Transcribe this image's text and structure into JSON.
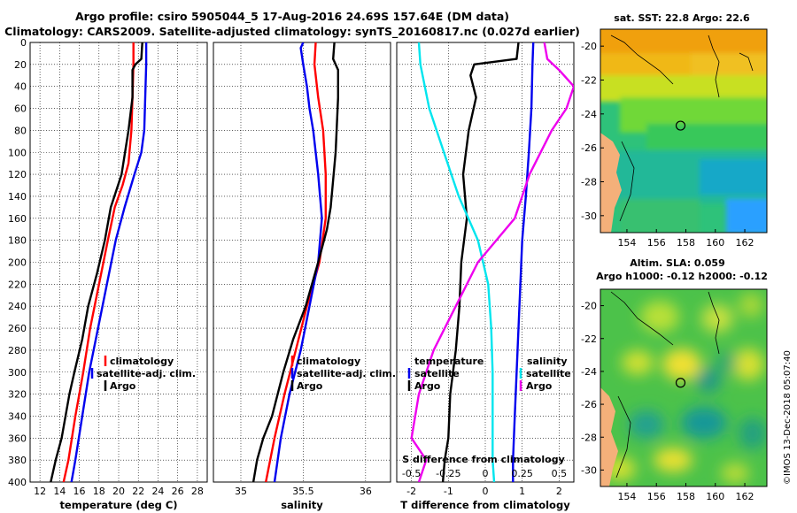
{
  "title_line1": "Argo profile: csiro 5905044_5 17-Aug-2016 24.69S 157.64E (DM data)",
  "title_line2": "Climatology: CARS2009. Satellite-adjusted climatology: synTS_20160817.nc (0.027d earlier)",
  "stamp": "©IMOS 13-Dec-2018 05:07:40",
  "colors": {
    "climatology": "#ff0000",
    "satellite": "#0000ee",
    "argo": "#000000",
    "s_sat": "#00e5ee",
    "s_argo": "#ee00ee"
  },
  "chart_data": [
    {
      "type": "line",
      "title": "temperature profile",
      "xlabel": "temperature (deg C)",
      "ylabel": "depth",
      "xlim": [
        11,
        29
      ],
      "ylim": [
        400,
        0
      ],
      "xticks": [
        12,
        14,
        16,
        18,
        20,
        22,
        24,
        26,
        28
      ],
      "yticks": [
        0,
        20,
        40,
        60,
        80,
        100,
        120,
        140,
        160,
        180,
        200,
        220,
        240,
        260,
        280,
        300,
        320,
        340,
        360,
        380,
        400
      ],
      "legend": [
        "climatology",
        "satellite-adj. clim.",
        "Argo"
      ],
      "series": [
        {
          "name": "climatology",
          "depth": [
            0,
            20,
            50,
            80,
            110,
            130,
            150,
            180,
            220,
            260,
            300,
            340,
            380,
            400
          ],
          "values": [
            21.5,
            21.5,
            21.4,
            21.3,
            21.0,
            20.4,
            19.6,
            18.9,
            18.0,
            17.1,
            16.4,
            15.6,
            14.9,
            14.4
          ]
        },
        {
          "name": "satellite-adj. clim.",
          "depth": [
            0,
            20,
            50,
            80,
            100,
            120,
            150,
            180,
            220,
            260,
            300,
            340,
            380,
            400
          ],
          "values": [
            22.8,
            22.8,
            22.7,
            22.6,
            22.3,
            21.6,
            20.6,
            19.7,
            18.8,
            17.9,
            17.0,
            16.3,
            15.6,
            15.2
          ]
        },
        {
          "name": "Argo",
          "depth": [
            0,
            15,
            20,
            25,
            35,
            50,
            80,
            120,
            150,
            180,
            210,
            240,
            270,
            300,
            320,
            340,
            360,
            380,
            400
          ],
          "values": [
            22.4,
            22.3,
            21.7,
            21.4,
            21.4,
            21.4,
            21.0,
            20.3,
            19.2,
            18.6,
            17.8,
            16.9,
            16.3,
            15.5,
            15.0,
            14.6,
            14.2,
            13.6,
            13.1
          ]
        }
      ]
    },
    {
      "type": "line",
      "title": "salinity profile",
      "xlabel": "salinity",
      "ylabel": "depth",
      "xlim": [
        34.78,
        36.2
      ],
      "ylim": [
        400,
        0
      ],
      "xticks": [
        35,
        35.5,
        36
      ],
      "legend": [
        "climatology",
        "satellite-adj. clim.",
        "Argo"
      ],
      "series": [
        {
          "name": "climatology",
          "depth": [
            0,
            20,
            50,
            80,
            120,
            160,
            200,
            240,
            280,
            320,
            360,
            400
          ],
          "values": [
            35.6,
            35.59,
            35.62,
            35.66,
            35.68,
            35.68,
            35.63,
            35.53,
            35.44,
            35.35,
            35.27,
            35.2
          ]
        },
        {
          "name": "satellite-adj. clim.",
          "depth": [
            0,
            5,
            20,
            40,
            60,
            80,
            120,
            160,
            200,
            240,
            280,
            320,
            360,
            400
          ],
          "values": [
            35.5,
            35.48,
            35.5,
            35.53,
            35.55,
            35.58,
            35.62,
            35.65,
            35.62,
            35.55,
            35.48,
            35.39,
            35.32,
            35.27
          ]
        },
        {
          "name": "Argo",
          "depth": [
            0,
            15,
            25,
            35,
            50,
            100,
            150,
            170,
            200,
            240,
            270,
            300,
            340,
            360,
            380,
            400
          ],
          "values": [
            35.75,
            35.74,
            35.78,
            35.78,
            35.78,
            35.76,
            35.72,
            35.69,
            35.62,
            35.52,
            35.42,
            35.34,
            35.25,
            35.18,
            35.13,
            35.1
          ]
        }
      ]
    },
    {
      "type": "line",
      "title": "difference from climatology",
      "xlabel": "T difference from climatology",
      "xlabel_top": "S difference from climatology",
      "xlim": [
        -2.4,
        2.4
      ],
      "ylim": [
        400,
        0
      ],
      "xticks": [
        -2,
        -1,
        0,
        1,
        2
      ],
      "xticks_top": [
        -0.5,
        -0.25,
        0,
        0.25,
        0.5
      ],
      "legend_left_title": "temperature",
      "legend_left": [
        "satellite",
        "Argo"
      ],
      "legend_right_title": "salinity",
      "legend_right": [
        "satellite",
        "Argo"
      ],
      "series": [
        {
          "name": "T satellite",
          "depth": [
            0,
            20,
            60,
            100,
            140,
            180,
            220,
            260,
            300,
            340,
            380,
            400
          ],
          "values": [
            1.3,
            1.28,
            1.25,
            1.18,
            1.1,
            1.0,
            0.95,
            0.9,
            0.85,
            0.8,
            0.75,
            0.75
          ]
        },
        {
          "name": "T Argo",
          "depth": [
            0,
            15,
            20,
            30,
            50,
            80,
            120,
            160,
            200,
            240,
            280,
            320,
            360,
            380,
            400
          ],
          "values": [
            0.9,
            0.85,
            -0.3,
            -0.4,
            -0.25,
            -0.45,
            -0.6,
            -0.5,
            -0.65,
            -0.7,
            -0.8,
            -0.95,
            -1.0,
            -1.1,
            -1.15
          ]
        },
        {
          "name": "S satellite",
          "depth": [
            0,
            20,
            60,
            100,
            140,
            180,
            220,
            260,
            300,
            340,
            380,
            400
          ],
          "values": [
            -0.45,
            -0.44,
            -0.38,
            -0.28,
            -0.18,
            -0.05,
            0.02,
            0.04,
            0.05,
            0.05,
            0.05,
            0.06
          ]
        },
        {
          "name": "S Argo",
          "depth": [
            0,
            15,
            25,
            40,
            60,
            80,
            120,
            160,
            200,
            240,
            280,
            320,
            360,
            380,
            400
          ],
          "values": [
            0.4,
            0.42,
            0.5,
            0.6,
            0.55,
            0.45,
            0.3,
            0.2,
            -0.05,
            -0.2,
            -0.35,
            -0.45,
            -0.5,
            -0.4,
            -0.45
          ]
        }
      ]
    },
    {
      "type": "heatmap",
      "title": "sat. SST: 22.8 Argo: 22.6",
      "xticks": [
        154,
        156,
        158,
        160,
        162
      ],
      "yticks": [
        -20,
        -22,
        -24,
        -26,
        -28,
        -30
      ],
      "marker": {
        "lon": 157.64,
        "lat": -24.69
      }
    },
    {
      "type": "heatmap",
      "title_line1": "Altim. SLA: 0.059",
      "title_line2": "Argo h1000: -0.12 h2000: -0.12",
      "xticks": [
        154,
        156,
        158,
        160,
        162
      ],
      "yticks": [
        -20,
        -22,
        -24,
        -26,
        -28,
        -30
      ],
      "marker": {
        "lon": 157.64,
        "lat": -24.69
      }
    }
  ]
}
